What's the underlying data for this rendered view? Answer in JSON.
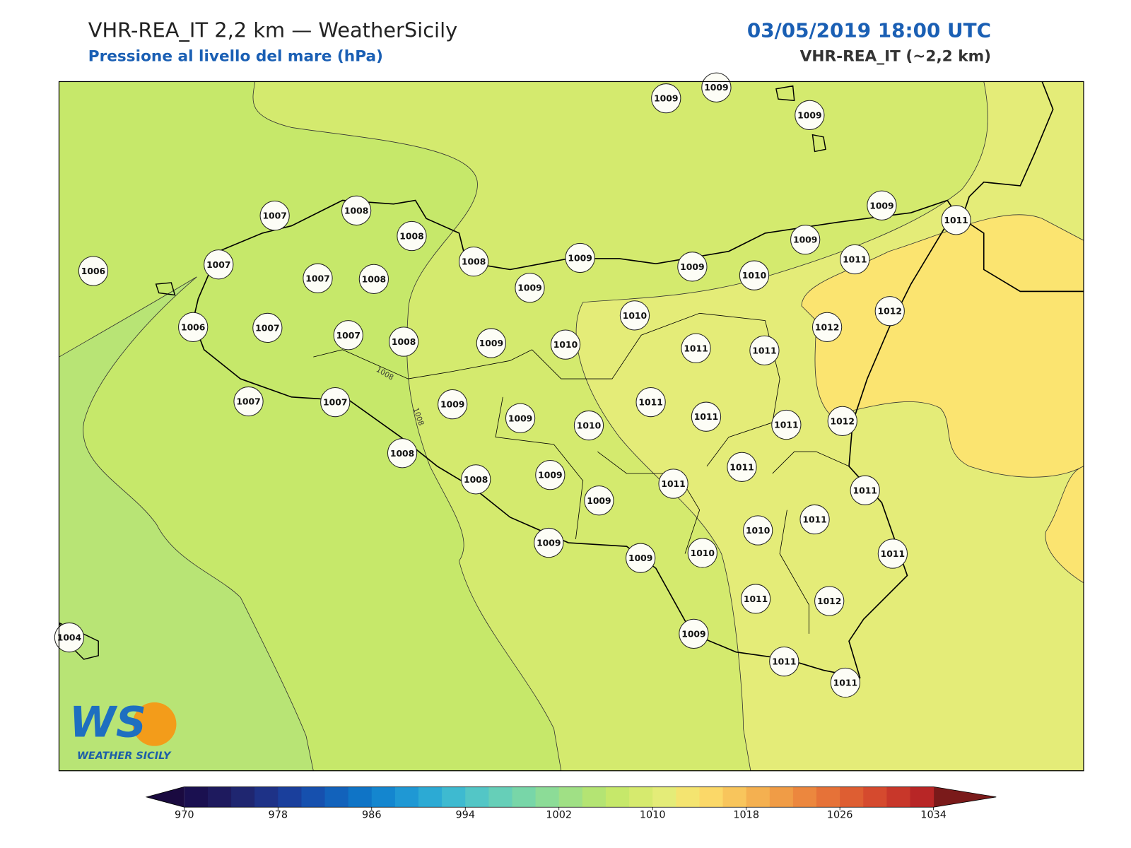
{
  "header": {
    "title": "VHR-REA_IT 2,2 km — WeatherSicily",
    "subtitle": "Pressione al livello del mare (hPa)",
    "datetime": "03/05/2019 18:00 UTC",
    "model": "VHR-REA_IT (~2,2 km)"
  },
  "contour_labels": [
    1008,
    1008
  ],
  "stations": [
    1009,
    1009,
    1009,
    1007,
    1008,
    1008,
    1006,
    1007,
    1007,
    1008,
    1008,
    1009,
    1009,
    1009,
    1010,
    1009,
    1009,
    1011,
    1011,
    1012,
    1012,
    1006,
    1007,
    1007,
    1008,
    1009,
    1010,
    1010,
    1011,
    1011,
    1007,
    1007,
    1009,
    1009,
    1010,
    1011,
    1011,
    1011,
    1012,
    1008,
    1008,
    1009,
    1009,
    1011,
    1011,
    1011,
    1011,
    1010,
    1009,
    1009,
    1010,
    1011,
    1011,
    1012,
    1004,
    1009,
    1011,
    1011
  ],
  "colorbar": {
    "min": 970,
    "max": 1034,
    "ticks": [
      970,
      978,
      986,
      994,
      1002,
      1010,
      1018,
      1026,
      1034
    ],
    "colors": [
      "#1a1050",
      "#1e1a5e",
      "#1f2670",
      "#1e3287",
      "#1a3f9c",
      "#1650ae",
      "#1262bb",
      "#0f74c6",
      "#1486cf",
      "#1f98d4",
      "#2caad4",
      "#3ebad0",
      "#53c6c6",
      "#66cfb8",
      "#78d6a8",
      "#8cdc97",
      "#a0e085",
      "#b4e473",
      "#c6e86a",
      "#d6ea6e",
      "#e4ec78",
      "#f4e470",
      "#fbd868",
      "#f8c55c",
      "#f4b050",
      "#f09c46",
      "#ec873e",
      "#e67238",
      "#de5e32",
      "#d54a2e",
      "#c8372a",
      "#b82626"
    ],
    "under_color": "#1a0a40",
    "over_color": "#7a1a1a"
  },
  "logo": {
    "mark": "WS",
    "name": "WEATHER SICILY"
  }
}
